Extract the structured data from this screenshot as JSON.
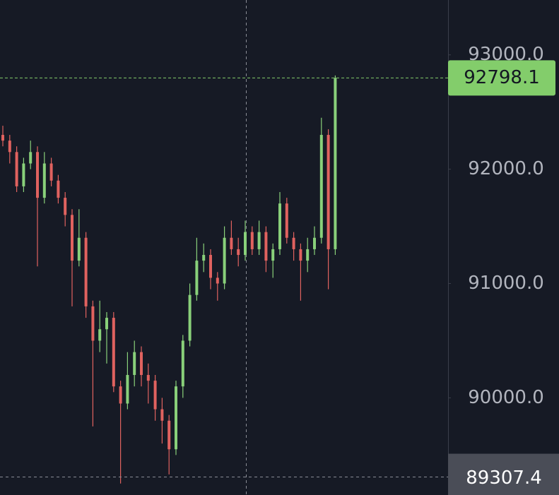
{
  "chart_data": {
    "type": "candlestick",
    "open": [
      92300,
      92250,
      92150,
      91850,
      92050,
      92150,
      91750,
      92050,
      91900,
      91750,
      91600,
      91200,
      91400,
      90800,
      90500,
      90600,
      90700,
      90100,
      89950,
      90200,
      90400,
      90200,
      90150,
      89900,
      89800,
      89550,
      90100,
      90500,
      90900,
      91200,
      91250,
      91050,
      91000,
      91400,
      91300,
      91250,
      91450,
      91300,
      91450,
      91200,
      91300,
      91700,
      91400,
      91300,
      91200,
      91300,
      91400,
      92300,
      91300
    ],
    "high": [
      92380,
      92300,
      92200,
      92100,
      92250,
      92200,
      92150,
      92100,
      91950,
      91800,
      91650,
      91650,
      91450,
      90850,
      90850,
      90750,
      90750,
      90150,
      90400,
      90500,
      90450,
      90300,
      90200,
      90000,
      89850,
      90150,
      90550,
      91000,
      91400,
      91350,
      91300,
      91100,
      91500,
      91550,
      91400,
      91550,
      91500,
      91550,
      91500,
      91350,
      91800,
      91750,
      91450,
      91350,
      91400,
      91500,
      92450,
      92350,
      92820
    ],
    "low": [
      92200,
      92050,
      91800,
      91800,
      92000,
      91150,
      91700,
      91850,
      91700,
      91500,
      90800,
      91150,
      90700,
      89750,
      90400,
      90300,
      90050,
      89250,
      89900,
      90100,
      90100,
      89950,
      89800,
      89600,
      89330,
      89500,
      90000,
      90450,
      90850,
      91100,
      90950,
      90850,
      90950,
      91250,
      91150,
      91200,
      91250,
      91250,
      91100,
      91050,
      91250,
      91350,
      91200,
      90850,
      91100,
      91250,
      91350,
      90950,
      91250
    ],
    "close": [
      92250,
      92150,
      91850,
      92050,
      92150,
      91750,
      92050,
      91900,
      91750,
      91600,
      91200,
      91400,
      90800,
      90500,
      90600,
      90700,
      90100,
      89950,
      90200,
      90400,
      90200,
      90150,
      89900,
      89800,
      89550,
      90100,
      90500,
      90900,
      91200,
      91250,
      91050,
      91000,
      91400,
      91300,
      91250,
      91450,
      91300,
      91450,
      91200,
      91300,
      91700,
      91400,
      91300,
      91200,
      91300,
      91400,
      92300,
      91300,
      92798.1
    ],
    "up_color": "#89d07a",
    "down_color": "#e0625f",
    "ylim": [
      89150,
      93480
    ],
    "yticks": [
      {
        "value": 90000,
        "label": "90000.0"
      },
      {
        "value": 91000,
        "label": "91000.0"
      },
      {
        "value": 92000,
        "label": "92000.0"
      },
      {
        "value": 93000,
        "label": "93000.0"
      }
    ],
    "grid": false,
    "last_price": 92798.1,
    "last_price_color": "#83cd6b",
    "crosshair_price": 89307.4
  }
}
